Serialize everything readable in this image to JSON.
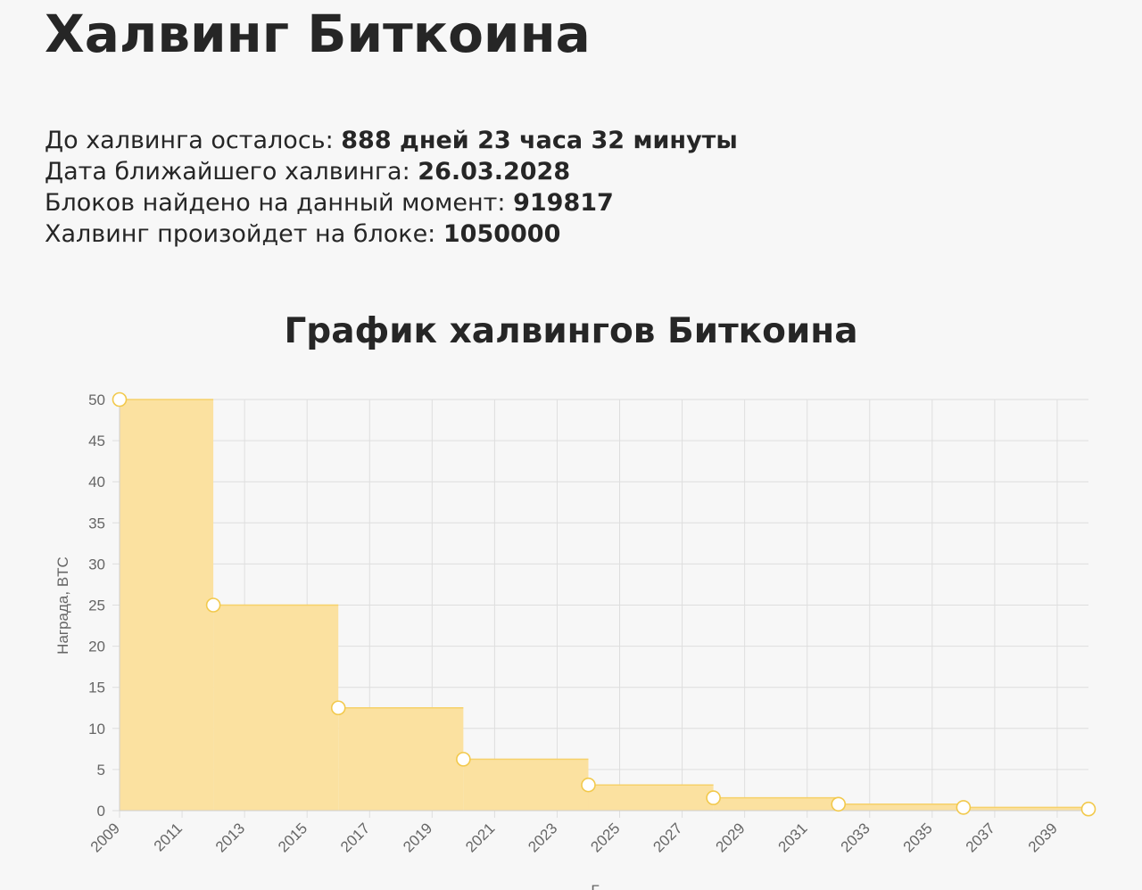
{
  "page": {
    "title": "Халвинг Биткоина"
  },
  "info": {
    "countdown_label": "До халвинга осталось:",
    "countdown_value": "888 дней 23 часа 32 минуты",
    "date_label": "Дата ближайшего халвинга:",
    "date_value": "26.03.2028",
    "blocks_label": "Блоков найдено на данный момент:",
    "blocks_value": "919817",
    "halving_block_label": "Халвинг произойдет на блоке:",
    "halving_block_value": "1050000"
  },
  "chart_data": {
    "type": "area",
    "title": "График халвингов Биткоина",
    "ylabel": "Награда, BTC",
    "xlabel": "Г",
    "stepped": true,
    "x_ticks": [
      "2009",
      "2011",
      "2013",
      "2015",
      "2017",
      "2019",
      "2021",
      "2023",
      "2025",
      "2027",
      "2029",
      "2031",
      "2033",
      "2035",
      "2037",
      "2039"
    ],
    "y_ticks": [
      "0",
      "5",
      "10",
      "15",
      "20",
      "25",
      "30",
      "35",
      "40",
      "45",
      "50"
    ],
    "xlim": [
      2009,
      2040
    ],
    "ylim": [
      0,
      50
    ],
    "grid": true,
    "series": [
      {
        "x": [
          2009,
          2012,
          2016,
          2020,
          2024,
          2028,
          2032,
          2036,
          2040
        ],
        "values": [
          50,
          25,
          12.5,
          6.25,
          3.125,
          1.5625,
          0.78125,
          0.390625,
          0.1953125
        ]
      }
    ],
    "colors": {
      "fill": "#fbe1a0",
      "line": "#f6d16a",
      "point_stroke": "#f2c94c",
      "point_fill": "#ffffff",
      "grid": "#dedede"
    }
  }
}
